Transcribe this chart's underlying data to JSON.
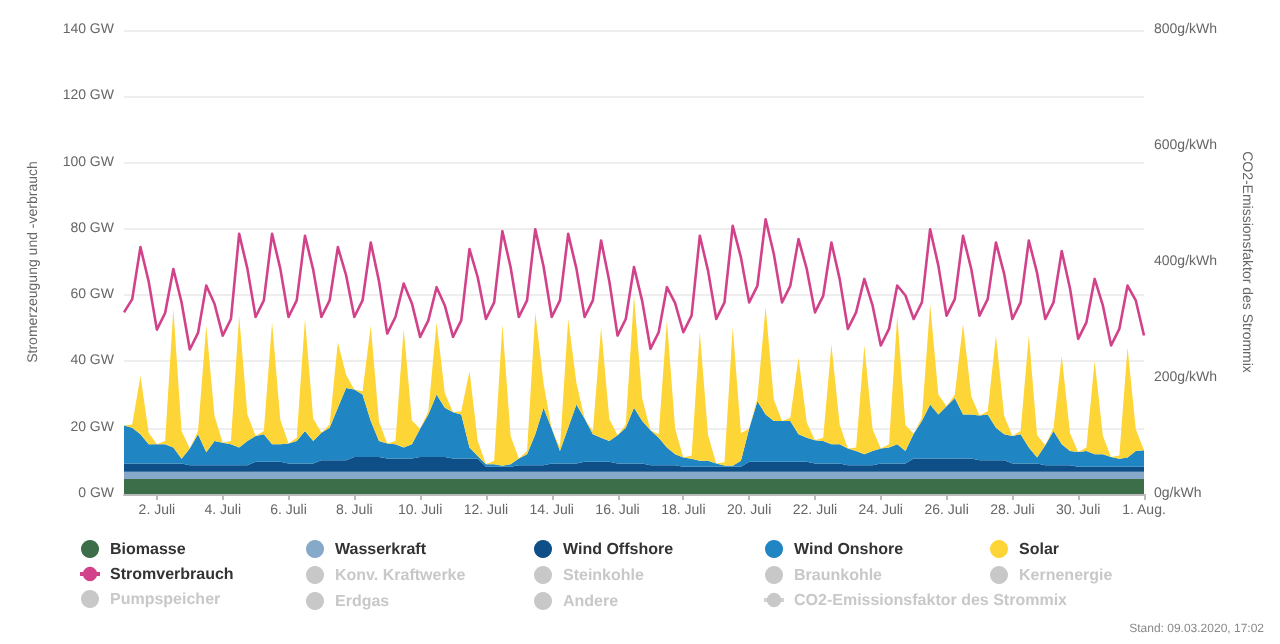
{
  "chart_data": {
    "type": "area",
    "stacked": true,
    "ylabel": "Stromerzeugung und -verbrauch",
    "y2label": "CO2-Emissionsfaktor des Strommix",
    "categories": [
      null,
      null,
      null,
      null,
      "2. Juli",
      null,
      null,
      null,
      null,
      null,
      null,
      null,
      "4. Juli",
      null,
      null,
      null,
      null,
      null,
      null,
      null,
      "6. Juli",
      null,
      null,
      null,
      null,
      null,
      null,
      null,
      "8. Juli",
      null,
      null,
      null,
      null,
      null,
      null,
      null,
      "10. Juli",
      null,
      null,
      null,
      null,
      null,
      null,
      null,
      "12. Juli",
      null,
      null,
      null,
      null,
      null,
      null,
      null,
      "14. Juli",
      null,
      null,
      null,
      null,
      null,
      null,
      null,
      "16. Juli",
      null,
      null,
      null,
      null,
      null,
      null,
      null,
      "18. Juli",
      null,
      null,
      null,
      null,
      null,
      null,
      null,
      "20. Juli",
      null,
      null,
      null,
      null,
      null,
      null,
      null,
      "22. Juli",
      null,
      null,
      null,
      null,
      null,
      null,
      null,
      "24. Juli",
      null,
      null,
      null,
      null,
      null,
      null,
      null,
      "26. Juli",
      null,
      null,
      null,
      null,
      null,
      null,
      null,
      "28. Juli",
      null,
      null,
      null,
      null,
      null,
      null,
      null,
      "30. Juli",
      null,
      null,
      null,
      null,
      null,
      null,
      null,
      "1. Aug."
    ],
    "series": [
      {
        "name": "Biomasse",
        "color": "#3d6e4a",
        "values": [
          4.5,
          4.5,
          4.5,
          4.5,
          4.5,
          4.5,
          4.5,
          4.5,
          4.5,
          4.5,
          4.5,
          4.5,
          4.5,
          4.5,
          4.5,
          4.5,
          4.5,
          4.5,
          4.5,
          4.5,
          4.5,
          4.5,
          4.5,
          4.5,
          4.5,
          4.5,
          4.5,
          4.5,
          4.5,
          4.5,
          4.5,
          4.5,
          4.5,
          4.5,
          4.5,
          4.5,
          4.5,
          4.5,
          4.5,
          4.5,
          4.5,
          4.5,
          4.5,
          4.5,
          4.5,
          4.5,
          4.5,
          4.5,
          4.5,
          4.5,
          4.5,
          4.5,
          4.5,
          4.5,
          4.5,
          4.5,
          4.5,
          4.5,
          4.5,
          4.5,
          4.5,
          4.5,
          4.5,
          4.5,
          4.5,
          4.5,
          4.5,
          4.5,
          4.5,
          4.5,
          4.5,
          4.5,
          4.5,
          4.5,
          4.5,
          4.5,
          4.5,
          4.5,
          4.5,
          4.5,
          4.5,
          4.5,
          4.5,
          4.5,
          4.5,
          4.5,
          4.5,
          4.5,
          4.5,
          4.5,
          4.5,
          4.5,
          4.5,
          4.5,
          4.5,
          4.5,
          4.5,
          4.5,
          4.5,
          4.5,
          4.5,
          4.5,
          4.5,
          4.5,
          4.5,
          4.5,
          4.5,
          4.5,
          4.5,
          4.5,
          4.5,
          4.5,
          4.5,
          4.5,
          4.5,
          4.5,
          4.5,
          4.5,
          4.5,
          4.5,
          4.5,
          4.5,
          4.5,
          4.5,
          4.5
        ]
      },
      {
        "name": "Wasserkraft",
        "color": "#86a9c9",
        "values": [
          2.2,
          2.2,
          2.2,
          2.2,
          2.2,
          2.2,
          2.2,
          2.2,
          2.2,
          2.2,
          2.2,
          2.2,
          2.2,
          2.2,
          2.2,
          2.2,
          2.2,
          2.2,
          2.2,
          2.2,
          2.2,
          2.2,
          2.2,
          2.2,
          2.2,
          2.2,
          2.2,
          2.2,
          2.2,
          2.2,
          2.2,
          2.2,
          2.2,
          2.2,
          2.2,
          2.2,
          2.2,
          2.2,
          2.2,
          2.2,
          2.2,
          2.2,
          2.2,
          2.2,
          2.2,
          2.2,
          2.2,
          2.2,
          2.2,
          2.2,
          2.2,
          2.2,
          2.2,
          2.2,
          2.2,
          2.2,
          2.2,
          2.2,
          2.2,
          2.2,
          2.2,
          2.2,
          2.2,
          2.2,
          2.2,
          2.2,
          2.2,
          2.2,
          2.2,
          2.2,
          2.2,
          2.2,
          2.2,
          2.2,
          2.2,
          2.2,
          2.2,
          2.2,
          2.2,
          2.2,
          2.2,
          2.2,
          2.2,
          2.2,
          2.2,
          2.2,
          2.2,
          2.2,
          2.2,
          2.2,
          2.2,
          2.2,
          2.2,
          2.2,
          2.2,
          2.2,
          2.2,
          2.2,
          2.2,
          2.2,
          2.2,
          2.2,
          2.2,
          2.2,
          2.2,
          2.2,
          2.2,
          2.2,
          2.2,
          2.2,
          2.2,
          2.2,
          2.2,
          2.2,
          2.2,
          2.2,
          2.2,
          2.2,
          2.2,
          2.2,
          2.2,
          2.2,
          2.2,
          2.2,
          2.2
        ]
      },
      {
        "name": "Wind Offshore",
        "color": "#0d4f86",
        "values": [
          2.5,
          2.5,
          2.5,
          2.5,
          2.5,
          2.5,
          2.5,
          2.5,
          2,
          2,
          2,
          2,
          2,
          2,
          2,
          2,
          3,
          3,
          3,
          3,
          2.5,
          2.5,
          2.5,
          2.5,
          3.5,
          3.5,
          3.5,
          3.5,
          4.5,
          4.5,
          4.5,
          4.5,
          4,
          4,
          4,
          4,
          4.5,
          4.5,
          4.5,
          4.5,
          4,
          4,
          4,
          4,
          1.5,
          1.5,
          1.5,
          1.5,
          2,
          2,
          2,
          2,
          2.5,
          2.5,
          2.5,
          2.5,
          3,
          3,
          3,
          3,
          2.5,
          2.5,
          2.5,
          2.5,
          2,
          2,
          2,
          2,
          1.5,
          1.5,
          1.5,
          1.5,
          1.5,
          1.5,
          1.5,
          1.5,
          3,
          3,
          3,
          3,
          3,
          3,
          3,
          3,
          2.5,
          2.5,
          2.5,
          2.5,
          2,
          2,
          2,
          2,
          2.5,
          2.5,
          2.5,
          2.5,
          4,
          4,
          4,
          4,
          4,
          4,
          4,
          4,
          3.5,
          3.5,
          3.5,
          3.5,
          2.5,
          2.5,
          2.5,
          2.5,
          2,
          2,
          2,
          2,
          1.5,
          1.5,
          1.5,
          1.5,
          1.5,
          1.5,
          1.5,
          1.5,
          1.5
        ]
      },
      {
        "name": "Wind Onshore",
        "color": "#1f85c3",
        "values": [
          11.5,
          10.8,
          8.8,
          5.8,
          5.8,
          5.8,
          4.8,
          1.4,
          5,
          9.3,
          3.9,
          7.3,
          6.8,
          6.3,
          5.3,
          7.3,
          7.8,
          8.3,
          5.3,
          5.3,
          6,
          6.8,
          9.8,
          6.8,
          8.3,
          9.8,
          15.8,
          21.8,
          20.3,
          18.8,
          10.8,
          4.8,
          4.5,
          4.3,
          3.3,
          4.3,
          8.5,
          12.8,
          18.8,
          14.8,
          14,
          13.3,
          3.3,
          0.8,
          0.8,
          0.8,
          0.3,
          0.8,
          2,
          3.3,
          9.3,
          17.3,
          10.5,
          3.8,
          10.8,
          17.8,
          13,
          8.3,
          7.3,
          6.3,
          8.5,
          10.8,
          16.8,
          12.8,
          10.5,
          8.3,
          5.3,
          3.3,
          2.8,
          2.4,
          1.8,
          1.8,
          1,
          0.4,
          0.3,
          1.8,
          10,
          18.3,
          14.3,
          12.3,
          12.3,
          12.3,
          8.3,
          7.3,
          7,
          6.8,
          5.8,
          5.8,
          5,
          4.3,
          3.3,
          4.3,
          4.5,
          4.8,
          5.8,
          3.8,
          7.5,
          11.3,
          16.3,
          13.3,
          15.8,
          18.3,
          13.3,
          13.3,
          13.5,
          13.8,
          9.8,
          7.8,
          8.3,
          8.8,
          4.8,
          1.8,
          6,
          10.3,
          6.3,
          4.3,
          4.5,
          4.8,
          3.8,
          3.8,
          3,
          2.4,
          2.8,
          4.8,
          5
        ]
      },
      {
        "name": "Solar",
        "color": "#fdd537",
        "values": [
          0,
          1,
          17.7,
          3.5,
          0,
          1,
          41.8,
          8.4,
          0,
          1,
          38.2,
          7.6,
          0,
          1,
          39.8,
          8,
          0,
          1,
          36.8,
          7.4,
          0,
          1,
          33.8,
          6.8,
          0,
          1,
          19.8,
          4,
          0,
          1,
          28.8,
          5.8,
          0,
          1,
          35.8,
          7.2,
          0,
          1,
          21.8,
          4.4,
          0,
          1,
          23.1,
          4.6,
          0,
          1,
          42.7,
          8.5,
          0,
          1,
          36.8,
          7.4,
          0,
          1,
          32.8,
          6.6,
          0,
          1,
          33.2,
          6.6,
          0,
          1,
          33.8,
          6.8,
          0,
          1,
          38.4,
          7.7,
          0,
          1,
          38.8,
          7.8,
          0,
          1,
          41.8,
          8.4,
          0,
          1,
          32.4,
          6.5,
          0,
          1,
          23.2,
          4.6,
          0,
          1,
          30.2,
          6,
          0,
          1,
          32.8,
          6.6,
          0,
          1,
          38.8,
          7.8,
          0,
          1,
          30.2,
          6,
          0,
          1,
          27.4,
          5.5,
          0,
          1,
          27.8,
          5.6,
          0,
          1,
          33.8,
          6.8,
          0,
          1,
          26.8,
          5.4,
          0,
          1,
          28.2,
          5.6,
          0,
          1,
          33.2,
          6.6,
          0
        ]
      },
      {
        "name": "Stromverbrauch",
        "type": "line",
        "color": "#d1428a",
        "values": [
          54.8,
          58.8,
          74.5,
          64.1,
          49.6,
          54.6,
          67.9,
          57.8,
          43.6,
          48.6,
          62.9,
          57.4,
          47.8,
          52.8,
          78.5,
          68,
          53.4,
          58.4,
          78.5,
          68,
          53.4,
          58.4,
          77.9,
          67.7,
          53.4,
          58.4,
          74.5,
          66,
          53.4,
          58.4,
          75.9,
          64.2,
          48.4,
          53.4,
          63.5,
          57.5,
          47.4,
          52.4,
          62.4,
          56.9,
          47.4,
          52.4,
          73.9,
          65.4,
          52.8,
          57.8,
          79.3,
          68.4,
          53.4,
          58.4,
          79.9,
          68.7,
          53.4,
          58.4,
          78.5,
          68,
          53.4,
          58.4,
          76.5,
          64.2,
          47.8,
          52.8,
          68.5,
          58.2,
          43.8,
          48.8,
          62.4,
          57.6,
          48.8,
          53.8,
          77.9,
          67.4,
          52.8,
          57.8,
          80.9,
          71.4,
          57.8,
          62.8,
          82.9,
          72.4,
          57.8,
          62.8,
          76.9,
          67.9,
          54.8,
          59.8,
          75.9,
          64.9,
          49.8,
          54.8,
          64.9,
          56.9,
          44.8,
          49.8,
          62.9,
          59.9,
          52.8,
          57.8,
          79.9,
          68.9,
          53.8,
          58.8,
          77.9,
          67.9,
          53.8,
          58.8,
          75.9,
          66.4,
          52.8,
          57.8,
          76.5,
          66.7,
          52.8,
          57.8,
          73.3,
          62.1,
          46.8,
          51.8,
          64.9,
          56.9,
          44.8,
          49.8,
          62.9,
          58.4,
          47.8
        ]
      },
      {
        "name": "Konv. Kraftwerke",
        "values": [
          null,
          null,
          null,
          null,
          null,
          null,
          null,
          null,
          null,
          null,
          null,
          null,
          null,
          null,
          null,
          null,
          null,
          null,
          null,
          null,
          null,
          null,
          null,
          null,
          null,
          null,
          null,
          null,
          null,
          null,
          null,
          null,
          null,
          null,
          null,
          null,
          null,
          null,
          null,
          null,
          null,
          null,
          null,
          null,
          null,
          null,
          null,
          null,
          null,
          null,
          null,
          null,
          null,
          null,
          null,
          null,
          null,
          null,
          null,
          null,
          null,
          null,
          null,
          null,
          null,
          null,
          null,
          null,
          null,
          null,
          null,
          null,
          null,
          null,
          null,
          null,
          null,
          null,
          null,
          null,
          null,
          null,
          null,
          null,
          null,
          null,
          null,
          null,
          null,
          null,
          null,
          null,
          null,
          null,
          null,
          null,
          null,
          null,
          null,
          null,
          null,
          null,
          null,
          null,
          null,
          null,
          null,
          null,
          null,
          null,
          null,
          null,
          null,
          null,
          null,
          null,
          null,
          null,
          null,
          null,
          null,
          null,
          null,
          null,
          null
        ]
      },
      {
        "name": "Steinkohle",
        "values": [
          null,
          null,
          null,
          null,
          null,
          null,
          null,
          null,
          null,
          null,
          null,
          null,
          null,
          null,
          null,
          null,
          null,
          null,
          null,
          null,
          null,
          null,
          null,
          null,
          null,
          null,
          null,
          null,
          null,
          null,
          null,
          null,
          null,
          null,
          null,
          null,
          null,
          null,
          null,
          null,
          null,
          null,
          null,
          null,
          null,
          null,
          null,
          null,
          null,
          null,
          null,
          null,
          null,
          null,
          null,
          null,
          null,
          null,
          null,
          null,
          null,
          null,
          null,
          null,
          null,
          null,
          null,
          null,
          null,
          null,
          null,
          null,
          null,
          null,
          null,
          null,
          null,
          null,
          null,
          null,
          null,
          null,
          null,
          null,
          null,
          null,
          null,
          null,
          null,
          null,
          null,
          null,
          null,
          null,
          null,
          null,
          null,
          null,
          null,
          null,
          null,
          null,
          null,
          null,
          null,
          null,
          null,
          null,
          null,
          null,
          null,
          null,
          null,
          null,
          null,
          null,
          null,
          null,
          null,
          null,
          null,
          null,
          null,
          null,
          null
        ]
      },
      {
        "name": "Braunkohle",
        "values": [
          null,
          null,
          null,
          null,
          null,
          null,
          null,
          null,
          null,
          null,
          null,
          null,
          null,
          null,
          null,
          null,
          null,
          null,
          null,
          null,
          null,
          null,
          null,
          null,
          null,
          null,
          null,
          null,
          null,
          null,
          null,
          null,
          null,
          null,
          null,
          null,
          null,
          null,
          null,
          null,
          null,
          null,
          null,
          null,
          null,
          null,
          null,
          null,
          null,
          null,
          null,
          null,
          null,
          null,
          null,
          null,
          null,
          null,
          null,
          null,
          null,
          null,
          null,
          null,
          null,
          null,
          null,
          null,
          null,
          null,
          null,
          null,
          null,
          null,
          null,
          null,
          null,
          null,
          null,
          null,
          null,
          null,
          null,
          null,
          null,
          null,
          null,
          null,
          null,
          null,
          null,
          null,
          null,
          null,
          null,
          null,
          null,
          null,
          null,
          null,
          null,
          null,
          null,
          null,
          null,
          null,
          null,
          null,
          null,
          null,
          null,
          null,
          null,
          null,
          null,
          null,
          null,
          null,
          null,
          null,
          null,
          null,
          null,
          null,
          null
        ]
      },
      {
        "name": "Kernenergie",
        "values": [
          null,
          null,
          null,
          null,
          null,
          null,
          null,
          null,
          null,
          null,
          null,
          null,
          null,
          null,
          null,
          null,
          null,
          null,
          null,
          null,
          null,
          null,
          null,
          null,
          null,
          null,
          null,
          null,
          null,
          null,
          null,
          null,
          null,
          null,
          null,
          null,
          null,
          null,
          null,
          null,
          null,
          null,
          null,
          null,
          null,
          null,
          null,
          null,
          null,
          null,
          null,
          null,
          null,
          null,
          null,
          null,
          null,
          null,
          null,
          null,
          null,
          null,
          null,
          null,
          null,
          null,
          null,
          null,
          null,
          null,
          null,
          null,
          null,
          null,
          null,
          null,
          null,
          null,
          null,
          null,
          null,
          null,
          null,
          null,
          null,
          null,
          null,
          null,
          null,
          null,
          null,
          null,
          null,
          null,
          null,
          null,
          null,
          null,
          null,
          null,
          null,
          null,
          null,
          null,
          null,
          null,
          null,
          null,
          null,
          null,
          null,
          null,
          null,
          null,
          null,
          null,
          null,
          null,
          null,
          null,
          null,
          null,
          null,
          null,
          null
        ]
      },
      {
        "name": "Pumpspeicher",
        "values": [
          null,
          null,
          null,
          null,
          null,
          null,
          null,
          null,
          null,
          null,
          null,
          null,
          null,
          null,
          null,
          null,
          null,
          null,
          null,
          null,
          null,
          null,
          null,
          null,
          null,
          null,
          null,
          null,
          null,
          null,
          null,
          null,
          null,
          null,
          null,
          null,
          null,
          null,
          null,
          null,
          null,
          null,
          null,
          null,
          null,
          null,
          null,
          null,
          null,
          null,
          null,
          null,
          null,
          null,
          null,
          null,
          null,
          null,
          null,
          null,
          null,
          null,
          null,
          null,
          null,
          null,
          null,
          null,
          null,
          null,
          null,
          null,
          null,
          null,
          null,
          null,
          null,
          null,
          null,
          null,
          null,
          null,
          null,
          null,
          null,
          null,
          null,
          null,
          null,
          null,
          null,
          null,
          null,
          null,
          null,
          null,
          null,
          null,
          null,
          null,
          null,
          null,
          null,
          null,
          null,
          null,
          null,
          null,
          null,
          null,
          null,
          null,
          null,
          null,
          null,
          null,
          null,
          null,
          null,
          null,
          null,
          null,
          null,
          null,
          null
        ]
      },
      {
        "name": "Erdgas",
        "values": [
          null,
          null,
          null,
          null,
          null,
          null,
          null,
          null,
          null,
          null,
          null,
          null,
          null,
          null,
          null,
          null,
          null,
          null,
          null,
          null,
          null,
          null,
          null,
          null,
          null,
          null,
          null,
          null,
          null,
          null,
          null,
          null,
          null,
          null,
          null,
          null,
          null,
          null,
          null,
          null,
          null,
          null,
          null,
          null,
          null,
          null,
          null,
          null,
          null,
          null,
          null,
          null,
          null,
          null,
          null,
          null,
          null,
          null,
          null,
          null,
          null,
          null,
          null,
          null,
          null,
          null,
          null,
          null,
          null,
          null,
          null,
          null,
          null,
          null,
          null,
          null,
          null,
          null,
          null,
          null,
          null,
          null,
          null,
          null,
          null,
          null,
          null,
          null,
          null,
          null,
          null,
          null,
          null,
          null,
          null,
          null,
          null,
          null,
          null,
          null,
          null,
          null,
          null,
          null,
          null,
          null,
          null,
          null,
          null,
          null,
          null,
          null,
          null,
          null,
          null,
          null,
          null,
          null,
          null,
          null,
          null,
          null,
          null,
          null,
          null
        ]
      },
      {
        "name": "Andere",
        "values": [
          null,
          null,
          null,
          null,
          null,
          null,
          null,
          null,
          null,
          null,
          null,
          null,
          null,
          null,
          null,
          null,
          null,
          null,
          null,
          null,
          null,
          null,
          null,
          null,
          null,
          null,
          null,
          null,
          null,
          null,
          null,
          null,
          null,
          null,
          null,
          null,
          null,
          null,
          null,
          null,
          null,
          null,
          null,
          null,
          null,
          null,
          null,
          null,
          null,
          null,
          null,
          null,
          null,
          null,
          null,
          null,
          null,
          null,
          null,
          null,
          null,
          null,
          null,
          null,
          null,
          null,
          null,
          null,
          null,
          null,
          null,
          null,
          null,
          null,
          null,
          null,
          null,
          null,
          null,
          null,
          null,
          null,
          null,
          null,
          null,
          null,
          null,
          null,
          null,
          null,
          null,
          null,
          null,
          null,
          null,
          null,
          null,
          null,
          null,
          null,
          null,
          null,
          null,
          null,
          null,
          null,
          null,
          null,
          null,
          null,
          null,
          null,
          null,
          null,
          null,
          null,
          null,
          null,
          null,
          null,
          null,
          null,
          null,
          null,
          null
        ]
      },
      {
        "name": "CO2-Emissionsfaktor des Strommix",
        "type": "line",
        "values": [
          null,
          null,
          null,
          null,
          null,
          null,
          null,
          null,
          null,
          null,
          null,
          null,
          null,
          null,
          null,
          null,
          null,
          null,
          null,
          null,
          null,
          null,
          null,
          null,
          null,
          null,
          null,
          null,
          null,
          null,
          null,
          null,
          null,
          null,
          null,
          null,
          null,
          null,
          null,
          null,
          null,
          null,
          null,
          null,
          null,
          null,
          null,
          null,
          null,
          null,
          null,
          null,
          null,
          null,
          null,
          null,
          null,
          null,
          null,
          null,
          null,
          null,
          null,
          null,
          null,
          null,
          null,
          null,
          null,
          null,
          null,
          null,
          null,
          null,
          null,
          null,
          null,
          null,
          null,
          null,
          null,
          null,
          null,
          null,
          null,
          null,
          null,
          null,
          null,
          null,
          null,
          null,
          null,
          null,
          null,
          null,
          null,
          null,
          null,
          null,
          null,
          null,
          null,
          null,
          null,
          null,
          null,
          null,
          null,
          null,
          null,
          null,
          null,
          null,
          null,
          null,
          null,
          null,
          null,
          null,
          null,
          null,
          null,
          null,
          null
        ]
      }
    ],
    "ylim": [
      0,
      140
    ],
    "yticks": [
      {
        "value": 0,
        "label": "0 GW"
      },
      {
        "value": 20,
        "label": "20 GW"
      },
      {
        "value": 40,
        "label": "40 GW"
      },
      {
        "value": 60,
        "label": "60 GW"
      },
      {
        "value": 80,
        "label": "80 GW"
      },
      {
        "value": 100,
        "label": "100 GW"
      },
      {
        "value": 120,
        "label": "120 GW"
      },
      {
        "value": 140,
        "label": "140 GW"
      }
    ],
    "y2lim": [
      0,
      800
    ],
    "y2ticks": [
      {
        "value": 0,
        "label": "0g/kWh"
      },
      {
        "value": 200,
        "label": "200g/kWh"
      },
      {
        "value": 400,
        "label": "400g/kWh"
      },
      {
        "value": 600,
        "label": "600g/kWh"
      },
      {
        "value": 800,
        "label": "800g/kWh"
      }
    ],
    "grid": "y",
    "legend": "bottom",
    "marker": "none",
    "line_style": "solid",
    "annotations": [
      "Stand: 09.03.2020, 17:02"
    ]
  }
}
